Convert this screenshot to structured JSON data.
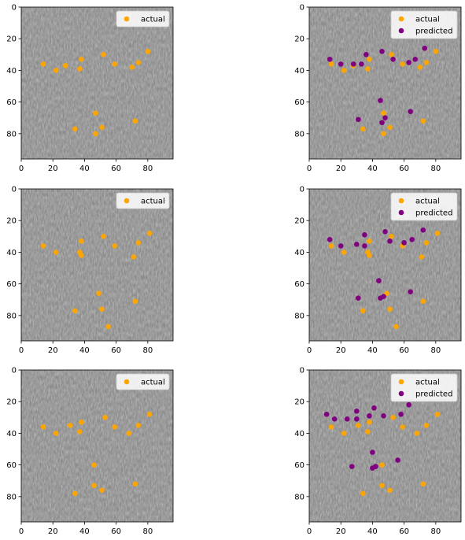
{
  "colors": {
    "actual": "#ffa500",
    "predicted": "#800080",
    "axes_frame": "#000000",
    "legend_border": "#cccccc"
  },
  "chart_data": [
    {
      "type": "scatter",
      "background": "grayscale-face-image",
      "xlim": [
        0,
        96
      ],
      "ylim": [
        96,
        0
      ],
      "x_ticks": [
        0,
        20,
        40,
        60,
        80
      ],
      "y_ticks": [
        0,
        20,
        40,
        60,
        80
      ],
      "legend_position": "top-right",
      "series": [
        {
          "name": "actual",
          "color": "#ffa500",
          "points": [
            [
              14,
              36
            ],
            [
              22,
              40
            ],
            [
              28,
              37
            ],
            [
              38,
              33
            ],
            [
              37,
              39
            ],
            [
              52,
              30
            ],
            [
              59,
              36
            ],
            [
              70,
              38
            ],
            [
              74,
              35
            ],
            [
              80,
              28
            ],
            [
              47,
              67
            ],
            [
              34,
              77
            ],
            [
              51,
              76
            ],
            [
              47,
              80
            ],
            [
              72,
              72
            ]
          ]
        }
      ]
    },
    {
      "type": "scatter",
      "background": "grayscale-face-image",
      "xlim": [
        0,
        96
      ],
      "ylim": [
        96,
        0
      ],
      "x_ticks": [
        0,
        20,
        40,
        60,
        80
      ],
      "y_ticks": [
        0,
        20,
        40,
        60,
        80
      ],
      "legend_position": "top-right",
      "series": [
        {
          "name": "actual",
          "color": "#ffa500",
          "points": [
            [
              14,
              36
            ],
            [
              22,
              40
            ],
            [
              28,
              37
            ],
            [
              38,
              33
            ],
            [
              37,
              39
            ],
            [
              52,
              30
            ],
            [
              59,
              36
            ],
            [
              70,
              38
            ],
            [
              74,
              35
            ],
            [
              80,
              28
            ],
            [
              47,
              67
            ],
            [
              34,
              77
            ],
            [
              51,
              76
            ],
            [
              47,
              80
            ],
            [
              72,
              72
            ]
          ]
        },
        {
          "name": "predicted",
          "color": "#800080",
          "points": [
            [
              13,
              33
            ],
            [
              20,
              36
            ],
            [
              28,
              36
            ],
            [
              33,
              36
            ],
            [
              36,
              30
            ],
            [
              46,
              28
            ],
            [
              53,
              33
            ],
            [
              63,
              35
            ],
            [
              67,
              33
            ],
            [
              73,
              26
            ],
            [
              45,
              59
            ],
            [
              48,
              70
            ],
            [
              46,
              73
            ],
            [
              31,
              71
            ],
            [
              64,
              66
            ]
          ]
        }
      ]
    },
    {
      "type": "scatter",
      "background": "grayscale-face-image",
      "xlim": [
        0,
        96
      ],
      "ylim": [
        96,
        0
      ],
      "x_ticks": [
        0,
        20,
        40,
        60,
        80
      ],
      "y_ticks": [
        0,
        20,
        40,
        60,
        80
      ],
      "legend_position": "top-right",
      "series": [
        {
          "name": "actual",
          "color": "#ffa500",
          "points": [
            [
              14,
              36
            ],
            [
              22,
              40
            ],
            [
              38,
              33
            ],
            [
              37,
              40
            ],
            [
              38,
              42
            ],
            [
              52,
              30
            ],
            [
              59,
              36
            ],
            [
              71,
              43
            ],
            [
              74,
              34
            ],
            [
              81,
              28
            ],
            [
              49,
              66
            ],
            [
              34,
              77
            ],
            [
              51,
              76
            ],
            [
              55,
              87
            ],
            [
              72,
              71
            ]
          ]
        }
      ]
    },
    {
      "type": "scatter",
      "background": "grayscale-face-image",
      "xlim": [
        0,
        96
      ],
      "ylim": [
        96,
        0
      ],
      "x_ticks": [
        0,
        20,
        40,
        60,
        80
      ],
      "y_ticks": [
        0,
        20,
        40,
        60,
        80
      ],
      "legend_position": "top-right",
      "series": [
        {
          "name": "actual",
          "color": "#ffa500",
          "points": [
            [
              14,
              36
            ],
            [
              22,
              40
            ],
            [
              38,
              33
            ],
            [
              37,
              40
            ],
            [
              38,
              42
            ],
            [
              52,
              30
            ],
            [
              59,
              36
            ],
            [
              71,
              43
            ],
            [
              74,
              34
            ],
            [
              81,
              28
            ],
            [
              49,
              66
            ],
            [
              34,
              77
            ],
            [
              51,
              76
            ],
            [
              55,
              87
            ],
            [
              72,
              71
            ]
          ]
        },
        {
          "name": "predicted",
          "color": "#800080",
          "points": [
            [
              13,
              32
            ],
            [
              20,
              36
            ],
            [
              30,
              35
            ],
            [
              35,
              29
            ],
            [
              35,
              36
            ],
            [
              48,
              27
            ],
            [
              51,
              33
            ],
            [
              60,
              34
            ],
            [
              65,
              32
            ],
            [
              72,
              26
            ],
            [
              44,
              58
            ],
            [
              45,
              69
            ],
            [
              47,
              68
            ],
            [
              31,
              69
            ],
            [
              64,
              65
            ]
          ]
        }
      ]
    },
    {
      "type": "scatter",
      "background": "grayscale-face-image",
      "xlim": [
        0,
        96
      ],
      "ylim": [
        96,
        0
      ],
      "x_ticks": [
        0,
        20,
        40,
        60,
        80
      ],
      "y_ticks": [
        0,
        20,
        40,
        60,
        80
      ],
      "legend_position": "top-right",
      "series": [
        {
          "name": "actual",
          "color": "#ffa500",
          "points": [
            [
              14,
              36
            ],
            [
              22,
              40
            ],
            [
              31,
              35
            ],
            [
              38,
              33
            ],
            [
              37,
              39
            ],
            [
              53,
              30
            ],
            [
              59,
              36
            ],
            [
              68,
              40
            ],
            [
              74,
              35
            ],
            [
              81,
              28
            ],
            [
              46,
              60
            ],
            [
              34,
              78
            ],
            [
              46,
              73
            ],
            [
              51,
              76
            ],
            [
              72,
              72
            ]
          ]
        }
      ]
    },
    {
      "type": "scatter",
      "background": "grayscale-face-image",
      "xlim": [
        0,
        96
      ],
      "ylim": [
        96,
        0
      ],
      "x_ticks": [
        0,
        20,
        40,
        60,
        80
      ],
      "y_ticks": [
        0,
        20,
        40,
        60,
        80
      ],
      "legend_position": "top-right",
      "series": [
        {
          "name": "actual",
          "color": "#ffa500",
          "points": [
            [
              14,
              36
            ],
            [
              22,
              40
            ],
            [
              31,
              35
            ],
            [
              38,
              33
            ],
            [
              37,
              39
            ],
            [
              53,
              30
            ],
            [
              59,
              36
            ],
            [
              68,
              40
            ],
            [
              74,
              35
            ],
            [
              81,
              28
            ],
            [
              46,
              60
            ],
            [
              34,
              78
            ],
            [
              46,
              73
            ],
            [
              51,
              76
            ],
            [
              72,
              72
            ]
          ]
        },
        {
          "name": "predicted",
          "color": "#800080",
          "points": [
            [
              11,
              28
            ],
            [
              16,
              31
            ],
            [
              24,
              31
            ],
            [
              30,
              26
            ],
            [
              30,
              31
            ],
            [
              41,
              24
            ],
            [
              47,
              29
            ],
            [
              58,
              28
            ],
            [
              63,
              22
            ],
            [
              38,
              29
            ],
            [
              40,
              52
            ],
            [
              27,
              61
            ],
            [
              40,
              62
            ],
            [
              42,
              61
            ],
            [
              56,
              57
            ]
          ]
        }
      ]
    }
  ]
}
